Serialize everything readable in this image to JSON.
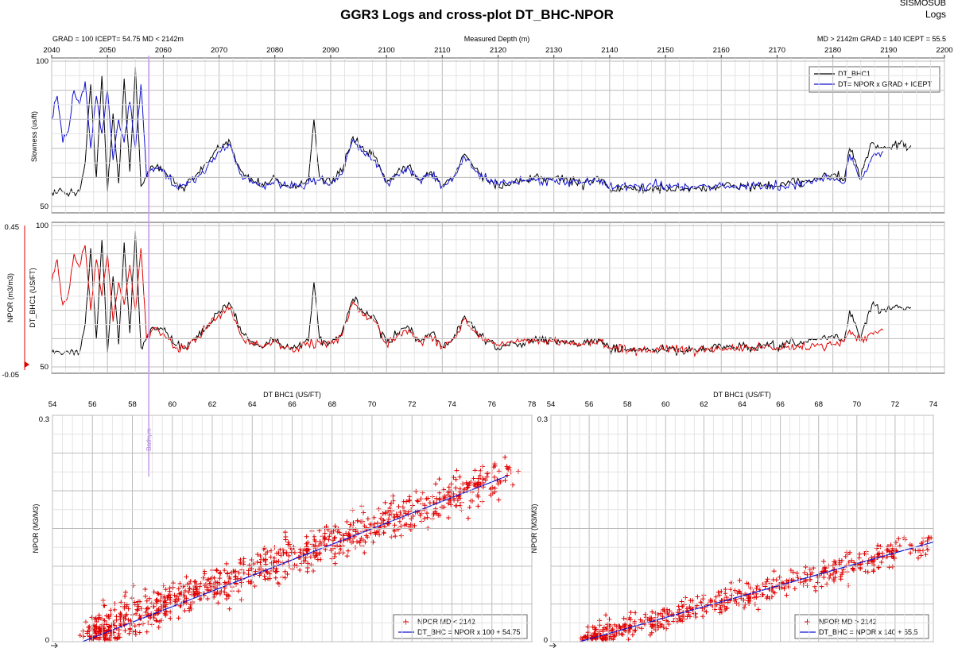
{
  "title": "GGR3 Logs and cross-plot DT_BHC-NPOR",
  "corner_labels": [
    "SISMOSUB",
    "Logs"
  ],
  "header_left": "GRAD = 100 ICEPT= 54.75  MD < 2142m",
  "header_center": "Measured Depth (m)",
  "header_right": "MD > 2142m GRAD = 140 ICEPT = 55.5",
  "marker_label": "Bathym",
  "colors": {
    "black": "#000000",
    "blue": "#1010d0",
    "red": "#e00000",
    "purple": "#c8a0e8",
    "grid": "#bcbcbc"
  },
  "chart_data": [
    {
      "type": "line",
      "id": "slowness",
      "xlabel": "Measured Depth (m)",
      "ylabel": "Slowness (us/ft)",
      "xlim": [
        2040,
        2200
      ],
      "x_ticks": [
        "2040",
        "2050",
        "2060",
        "2070",
        "2080",
        "2090",
        "2100",
        "2110",
        "2120",
        "2130",
        "2140",
        "2150",
        "2160",
        "2170",
        "2180",
        "2190",
        "2200"
      ],
      "ylim": [
        50,
        100
      ],
      "y_ticks": [
        "50",
        "100"
      ],
      "grid": true,
      "legend": "top-right",
      "series": [
        {
          "name": "DT_BHC1",
          "color": "#000000",
          "x": [
            2040,
            2045,
            2046,
            2047,
            2048,
            2049,
            2050,
            2051,
            2052,
            2053,
            2054,
            2055,
            2056,
            2057,
            2058,
            2060,
            2062,
            2064,
            2066,
            2068,
            2070,
            2072,
            2074,
            2076,
            2078,
            2080,
            2082,
            2084,
            2086,
            2087,
            2088,
            2090,
            2092,
            2094,
            2096,
            2098,
            2100,
            2102,
            2104,
            2106,
            2108,
            2110,
            2112,
            2114,
            2116,
            2118,
            2120,
            2125,
            2130,
            2135,
            2138,
            2140,
            2145,
            2150,
            2155,
            2160,
            2165,
            2170,
            2175,
            2180,
            2182,
            2183,
            2185,
            2187,
            2189,
            2191,
            2194
          ],
          "y": [
            55,
            55,
            65,
            92,
            60,
            95,
            55,
            82,
            58,
            94,
            62,
            98,
            57,
            60,
            64,
            63,
            58,
            57,
            61,
            65,
            70,
            72,
            62,
            59,
            57,
            60,
            57,
            57,
            59,
            80,
            60,
            58,
            62,
            74,
            69,
            67,
            58,
            62,
            64,
            59,
            62,
            57,
            60,
            68,
            63,
            59,
            57,
            59,
            60,
            58,
            60,
            56,
            56,
            56,
            56,
            57,
            57,
            57,
            59,
            61,
            59,
            70,
            60,
            72,
            70,
            71,
            71
          ]
        },
        {
          "name": "DT= NPOR x GRAD + ICEPT",
          "color": "#1010d0",
          "x": [
            2040,
            2041,
            2042,
            2043,
            2044,
            2045,
            2046,
            2047,
            2048,
            2049,
            2050,
            2051,
            2052,
            2053,
            2054,
            2055,
            2056,
            2057,
            2058,
            2060,
            2062,
            2064,
            2066,
            2068,
            2070,
            2072,
            2074,
            2076,
            2078,
            2080,
            2082,
            2084,
            2086,
            2088,
            2090,
            2092,
            2094,
            2096,
            2098,
            2100,
            2102,
            2104,
            2106,
            2108,
            2110,
            2112,
            2114,
            2116,
            2118,
            2120,
            2125,
            2130,
            2135,
            2138,
            2140,
            2145,
            2150,
            2155,
            2160,
            2165,
            2170,
            2175,
            2180,
            2182,
            2183,
            2185,
            2187,
            2189
          ],
          "y": [
            80,
            88,
            72,
            76,
            90,
            85,
            93,
            70,
            88,
            75,
            90,
            66,
            80,
            72,
            86,
            70,
            92,
            60,
            63,
            62,
            57,
            57,
            60,
            64,
            69,
            71,
            61,
            58,
            57,
            59,
            57,
            57,
            58,
            59,
            58,
            61,
            73,
            68,
            66,
            58,
            61,
            63,
            59,
            61,
            57,
            60,
            67,
            62,
            59,
            58,
            59,
            59,
            58,
            59,
            57,
            57,
            57,
            57,
            57,
            57,
            57,
            58,
            60,
            58,
            68,
            59,
            67,
            69
          ]
        }
      ]
    },
    {
      "type": "line",
      "id": "npor-track",
      "ylabel": "DT_BHC1 (US/FT)",
      "ylabel2": "NPOR (m3/m3)",
      "xlim": [
        2040,
        2200
      ],
      "ylim": [
        50,
        100
      ],
      "y_ticks": [
        "50",
        "100"
      ],
      "ylim2": [
        -0.05,
        0.45
      ],
      "y2_ticks": [
        "-0.05",
        "0.45"
      ],
      "grid": true,
      "series": [
        {
          "name": "DT_BHC1",
          "color": "#000000",
          "x": [
            2040,
            2045,
            2046,
            2047,
            2048,
            2049,
            2050,
            2051,
            2052,
            2053,
            2054,
            2055,
            2056,
            2057,
            2058,
            2060,
            2062,
            2064,
            2066,
            2068,
            2070,
            2072,
            2074,
            2076,
            2078,
            2080,
            2082,
            2084,
            2086,
            2087,
            2088,
            2090,
            2092,
            2094,
            2096,
            2098,
            2100,
            2102,
            2104,
            2106,
            2108,
            2110,
            2112,
            2114,
            2116,
            2118,
            2120,
            2125,
            2130,
            2135,
            2138,
            2140,
            2145,
            2150,
            2155,
            2160,
            2165,
            2170,
            2175,
            2180,
            2182,
            2183,
            2185,
            2187,
            2189,
            2191,
            2194
          ],
          "y": [
            55,
            55,
            65,
            92,
            60,
            95,
            55,
            82,
            58,
            94,
            62,
            98,
            57,
            60,
            64,
            63,
            58,
            57,
            61,
            65,
            70,
            72,
            62,
            59,
            57,
            60,
            57,
            57,
            59,
            80,
            60,
            58,
            62,
            74,
            69,
            67,
            58,
            62,
            64,
            59,
            62,
            57,
            60,
            68,
            63,
            59,
            57,
            59,
            60,
            58,
            60,
            56,
            56,
            56,
            56,
            57,
            57,
            57,
            59,
            61,
            59,
            70,
            60,
            72,
            70,
            71,
            71
          ]
        },
        {
          "name": "NPOR",
          "color": "#e00000",
          "x": [
            2040,
            2041,
            2042,
            2043,
            2044,
            2045,
            2046,
            2047,
            2048,
            2049,
            2050,
            2051,
            2052,
            2053,
            2054,
            2055,
            2056,
            2057,
            2058,
            2060,
            2062,
            2064,
            2066,
            2068,
            2070,
            2072,
            2074,
            2076,
            2078,
            2080,
            2082,
            2084,
            2086,
            2088,
            2090,
            2092,
            2094,
            2096,
            2098,
            2100,
            2102,
            2104,
            2106,
            2108,
            2110,
            2112,
            2114,
            2116,
            2118,
            2120,
            2125,
            2130,
            2135,
            2138,
            2140,
            2145,
            2150,
            2155,
            2160,
            2165,
            2170,
            2175,
            2180,
            2182,
            2183,
            2185,
            2187,
            2189
          ],
          "y": [
            80,
            88,
            72,
            76,
            90,
            85,
            93,
            70,
            88,
            75,
            90,
            66,
            80,
            72,
            86,
            70,
            92,
            60,
            63,
            62,
            57,
            57,
            60,
            64,
            69,
            71,
            61,
            58,
            57,
            59,
            57,
            57,
            58,
            59,
            58,
            61,
            73,
            68,
            66,
            58,
            61,
            63,
            59,
            61,
            57,
            60,
            67,
            62,
            59,
            58,
            59,
            59,
            58,
            59,
            57,
            56,
            56,
            56,
            56,
            57,
            57,
            57,
            58,
            59,
            63,
            59,
            62,
            63
          ]
        }
      ]
    },
    {
      "type": "scatter",
      "id": "crossplot-1",
      "xlabel": "DT BHC1 (US/FT)",
      "ylabel": "NPOR (M3/M3)",
      "xlim": [
        54,
        78
      ],
      "x_ticks": [
        "54",
        "56",
        "58",
        "60",
        "62",
        "64",
        "66",
        "68",
        "70",
        "72",
        "74",
        "76",
        "78"
      ],
      "ylim": [
        0,
        0.3
      ],
      "y_ticks": [
        "0",
        "0.3"
      ],
      "grid": true,
      "legend": "bottom-right",
      "series": [
        {
          "name": "NPOR MD < 2142",
          "color": "#e00000",
          "marker": "+",
          "fit": {
            "grad": 100,
            "icept": 54.75
          },
          "n": 900,
          "spread": 0.018
        }
      ],
      "line": {
        "name": "DT_BHC = NPOR x 100 + 54.75",
        "color": "#1010d0",
        "x": [
          55.5,
          76.8
        ],
        "y": [
          0.0,
          0.22
        ]
      }
    },
    {
      "type": "scatter",
      "id": "crossplot-2",
      "xlabel": "DT BHC1 (US/FT)",
      "ylabel": "NPOR (M3/M3)",
      "xlim": [
        54,
        74
      ],
      "x_ticks": [
        "54",
        "56",
        "58",
        "60",
        "62",
        "64",
        "66",
        "68",
        "70",
        "72",
        "74"
      ],
      "ylim": [
        0,
        0.3
      ],
      "y_ticks": [
        "0",
        "0.3"
      ],
      "grid": true,
      "legend": "bottom-right",
      "series": [
        {
          "name": "NPOR MD > 2142",
          "color": "#e00000",
          "marker": "+",
          "fit": {
            "grad": 140,
            "icept": 55.5
          },
          "n": 520,
          "spread": 0.012
        }
      ],
      "line": {
        "name": "DT_BHC = NPOR x 140 + 55.5",
        "color": "#1010d0",
        "x": [
          55.5,
          74
        ],
        "y": [
          0.0,
          0.132
        ]
      }
    }
  ]
}
